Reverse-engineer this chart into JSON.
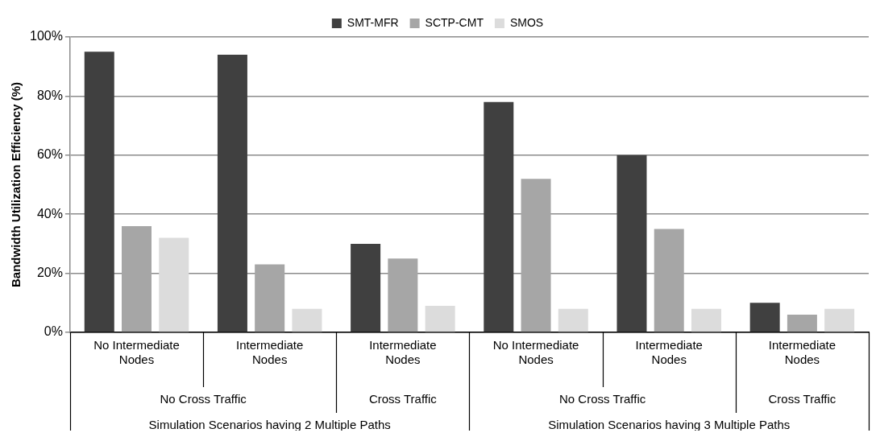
{
  "chart_data": {
    "type": "bar",
    "ylabel": "Bandwidth Utilization Efficiency (%)",
    "categories": [
      "No Intermediate Nodes",
      "Intermediate Nodes",
      "Intermediate Nodes",
      "No Intermediate Nodes",
      "Intermediate Nodes",
      "Intermediate Nodes"
    ],
    "series": [
      {
        "name": "SMT-MFR",
        "color": "#404040",
        "values": [
          95,
          94,
          30,
          78,
          60,
          10
        ]
      },
      {
        "name": "SCTP-CMT",
        "color": "#a6a6a6",
        "values": [
          36,
          23,
          25,
          52,
          35,
          6
        ]
      },
      {
        "name": "SMOS",
        "color": "#dcdcdc",
        "values": [
          32,
          8,
          9,
          8,
          8,
          8
        ]
      }
    ],
    "ylim": [
      0,
      100
    ],
    "yticks": [
      {
        "value": 0,
        "label": "0%"
      },
      {
        "value": 20,
        "label": "20%"
      },
      {
        "value": 40,
        "label": "40%"
      },
      {
        "value": 60,
        "label": "60%"
      },
      {
        "value": 80,
        "label": "80%"
      },
      {
        "value": 100,
        "label": "100%"
      }
    ],
    "grid": "y",
    "legend": "top",
    "annotations": [
      "No Cross Traffic",
      "Cross Traffic",
      "No Cross Traffic",
      "Cross Traffic",
      "Simulation Scenarios having 2 Multiple Paths",
      "Simulation Scenarios having 3 Multiple Paths"
    ]
  }
}
